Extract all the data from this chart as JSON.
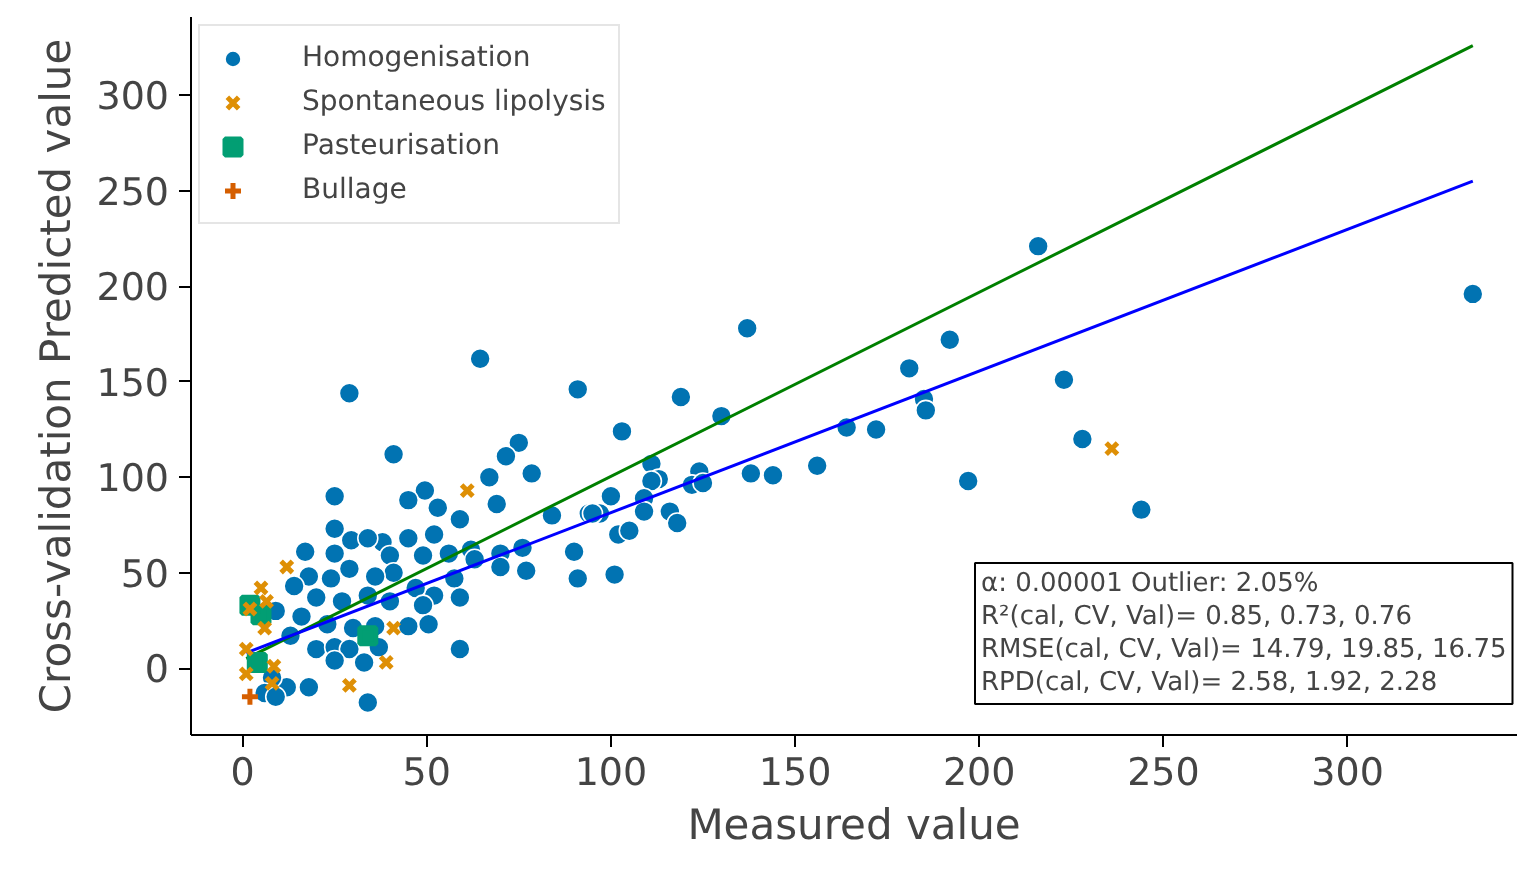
{
  "chart_data": {
    "type": "scatter",
    "xlabel": "Measured value",
    "ylabel": "Cross-validation Predicted value",
    "xlim": [
      -14,
      346
    ],
    "ylim": [
      -35,
      341
    ],
    "xticks": [
      0,
      50,
      100,
      150,
      200,
      250,
      300
    ],
    "yticks": [
      0,
      50,
      100,
      150,
      200,
      250,
      300
    ],
    "grid": false,
    "legend": "top left",
    "series": [
      {
        "name": "Homogenisation",
        "color": "#0173b2",
        "marker": "circle",
        "x": [
          334,
          216,
          137,
          192,
          181,
          223,
          119,
          185,
          185.5,
          130,
          103,
          164,
          172,
          228,
          111,
          113,
          111,
          124,
          122,
          125,
          138,
          144,
          156,
          197,
          244,
          100,
          109,
          109,
          116,
          118,
          97,
          94,
          102,
          105,
          101,
          64.5,
          29,
          91,
          41,
          75,
          71.5,
          78.5,
          67,
          25,
          49.5,
          45,
          53,
          69,
          84,
          95,
          59,
          25,
          38,
          45,
          52,
          29.5,
          34,
          17,
          25,
          40,
          49,
          56,
          62,
          70,
          76,
          90,
          91,
          77,
          70,
          63,
          57.5,
          52,
          47,
          41,
          36,
          29,
          24,
          18,
          14,
          20,
          27,
          34,
          40,
          49,
          59,
          9,
          16,
          23,
          30,
          36,
          45,
          50.5,
          13,
          20,
          25,
          29,
          37,
          25,
          33,
          12,
          18,
          59,
          34,
          8,
          6,
          9
        ],
        "values": [
          196,
          221,
          178,
          172,
          157,
          151,
          142,
          141,
          135,
          132,
          124,
          126,
          125,
          120,
          107,
          99,
          98,
          103,
          96,
          97,
          102,
          101,
          106,
          98,
          83,
          90,
          89,
          82,
          82,
          76,
          81,
          81,
          70,
          72,
          49,
          162,
          144,
          146,
          112,
          118,
          111,
          102,
          100,
          90,
          93,
          88,
          84,
          86,
          80,
          81,
          78,
          73,
          66,
          68,
          70,
          67,
          68,
          61,
          60,
          59,
          59,
          60,
          62,
          60,
          63,
          61,
          47,
          51,
          53,
          57,
          47,
          38,
          42,
          50,
          48,
          52,
          47,
          48,
          43,
          37,
          35,
          38,
          35,
          33,
          37,
          30,
          27,
          23,
          21,
          22,
          22,
          23,
          17,
          10,
          11,
          10,
          11,
          4,
          3,
          -10,
          -10,
          10,
          -18,
          -5,
          -13,
          -15
        ]
      },
      {
        "name": "Spontaneous lipolysis",
        "color": "#de8f05",
        "marker": "x",
        "x": [
          236,
          61,
          12,
          2,
          6.5,
          5,
          41,
          39,
          29,
          8.5,
          8,
          1,
          6,
          1
        ],
        "values": [
          115,
          93,
          53,
          31,
          35,
          42,
          21,
          3,
          -9,
          1,
          -8,
          10,
          21,
          -3
        ]
      },
      {
        "name": "Pasteurisation",
        "color": "#029e73",
        "marker": "square",
        "x": [
          34,
          5,
          4,
          2
        ],
        "values": [
          17,
          28,
          3,
          33
        ]
      },
      {
        "name": "Bullage",
        "color": "#d55e00",
        "marker": "plus",
        "x": [
          2
        ],
        "values": [
          -15
        ]
      },
      {
        "type": "line",
        "color": "#008000",
        "x": [
          1,
          334
        ],
        "values": [
          5,
          326
        ]
      },
      {
        "type": "line",
        "color": "#0000ff",
        "x": [
          1,
          334
        ],
        "values": [
          8,
          255
        ]
      }
    ],
    "annotations": [
      "α: 0.00001 Outlier: 2.05%",
      "R²(cal, CV, Val)= 0.85, 0.73, 0.76",
      "RMSE(cal, CV, Val)= 14.79, 19.85, 16.75",
      "RPD(cal, CV, Val)= 2.58, 1.92, 2.28"
    ]
  }
}
